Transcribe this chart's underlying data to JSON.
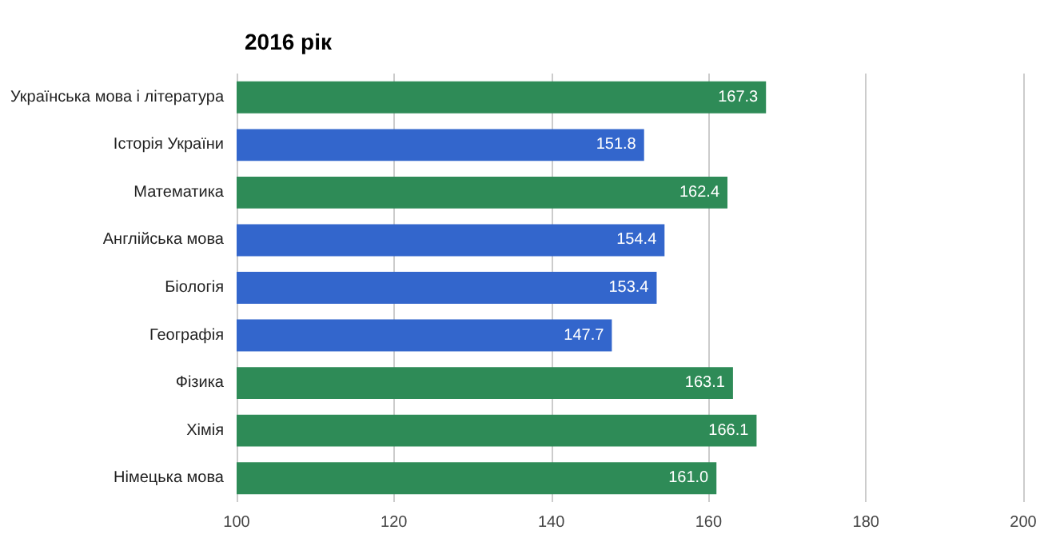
{
  "chart_data": {
    "type": "bar",
    "orientation": "horizontal",
    "title": "2016 рік",
    "categories": [
      "Українська мова і література",
      "Історія України",
      "Математика",
      "Англійська мова",
      "Біологія",
      "Географія",
      "Фізика",
      "Хімія",
      "Німецька мова"
    ],
    "values": [
      167.3,
      151.8,
      162.4,
      154.4,
      153.4,
      147.7,
      163.1,
      166.1,
      161.0
    ],
    "value_labels": [
      "167.3",
      "151.8",
      "162.4",
      "154.4",
      "153.4",
      "147.7",
      "163.1",
      "166.1",
      "161.0"
    ],
    "colors": [
      "#2e8b57",
      "#3366cc",
      "#2e8b57",
      "#3366cc",
      "#3366cc",
      "#3366cc",
      "#2e8b57",
      "#2e8b57",
      "#2e8b57"
    ],
    "xlim": [
      100,
      200
    ],
    "xticks": [
      100,
      120,
      140,
      160,
      180,
      200
    ],
    "grid": "x"
  }
}
